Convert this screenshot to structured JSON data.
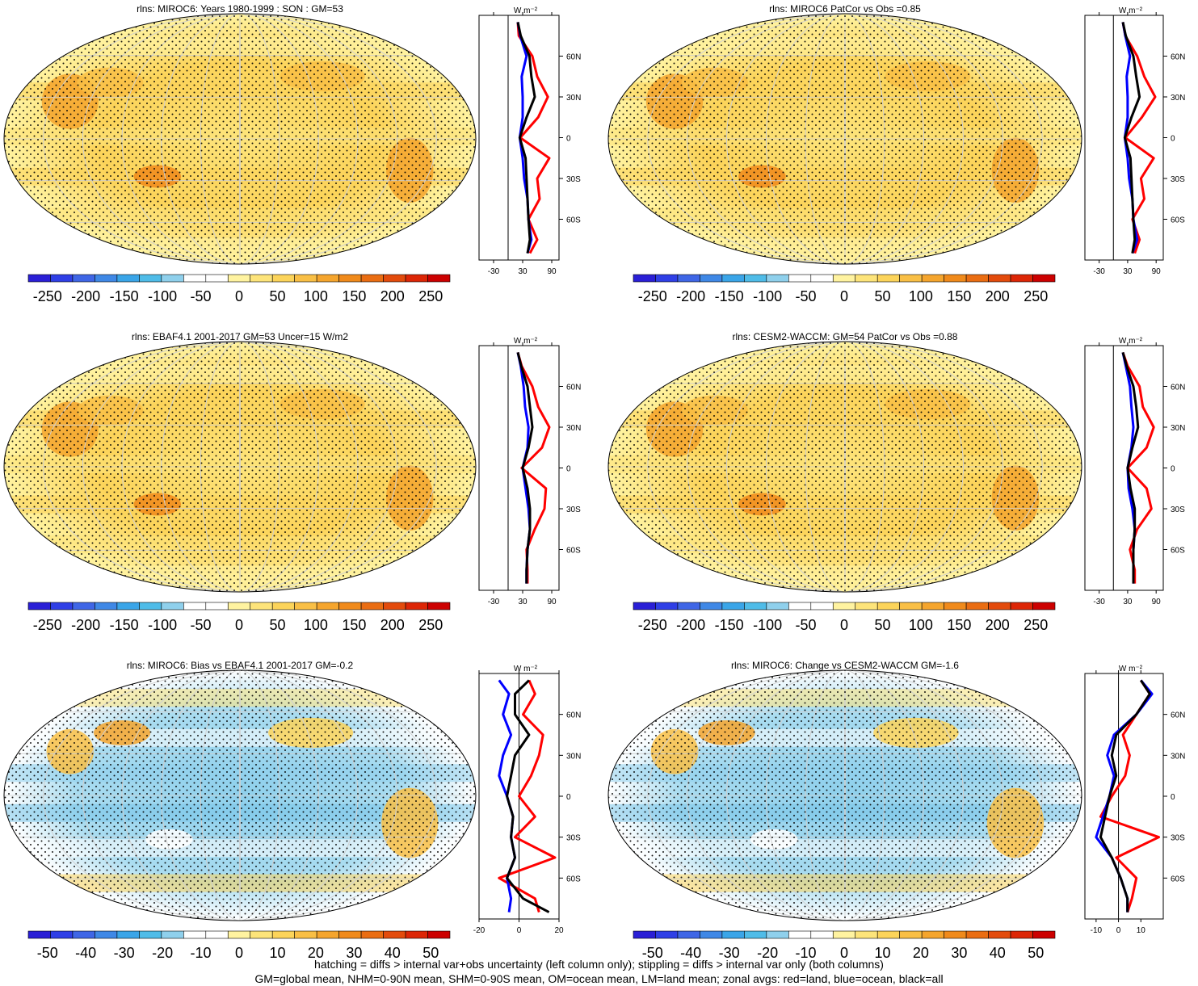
{
  "chart_data": [
    {
      "type": "heatmap",
      "title": "rlns: MIROC6: Years 1980-1999 : SON : GM=53",
      "colorbar": {
        "ticks": [
          "-250",
          "-200",
          "-150",
          "-100",
          "-50",
          "0",
          "50",
          "100",
          "150",
          "200",
          "250"
        ],
        "range": [
          -275,
          275
        ]
      },
      "zonal_panel": {
        "units": "W m⁻²",
        "x_ticks": [
          "-30",
          "30",
          "90"
        ],
        "x_range": [
          -60,
          105
        ],
        "y_ticks": [
          "60N",
          "30N",
          "0",
          "30S",
          "60S"
        ],
        "y_range": [
          -90,
          90
        ],
        "series": [
          {
            "color": "#ff0000",
            "lat": [
              85,
              75,
              60,
              45,
              30,
              15,
              0,
              -15,
              -30,
              -45,
              -60,
              -75,
              -85
            ],
            "values": [
              20,
              22,
              50,
              60,
              82,
              62,
              25,
              85,
              60,
              65,
              42,
              60,
              45
            ]
          },
          {
            "color": "#0000ff",
            "lat": [
              85,
              75,
              60,
              45,
              30,
              15,
              0,
              -15,
              -30,
              -45,
              -60,
              -75,
              -85
            ],
            "values": [
              20,
              25,
              38,
              28,
              30,
              30,
              24,
              30,
              33,
              40,
              42,
              48,
              40
            ]
          },
          {
            "color": "#000000",
            "lat": [
              85,
              75,
              60,
              45,
              30,
              15,
              0,
              -15,
              -30,
              -45,
              -60,
              -75,
              -85
            ],
            "values": [
              20,
              26,
              44,
              48,
              55,
              38,
              24,
              36,
              38,
              40,
              42,
              45,
              40
            ]
          }
        ]
      }
    },
    {
      "type": "heatmap",
      "title": "rlns: MIROC6 PatCor vs Obs =0.85",
      "colorbar": {
        "ticks": [
          "-250",
          "-200",
          "-150",
          "-100",
          "-50",
          "0",
          "50",
          "100",
          "150",
          "200",
          "250"
        ],
        "range": [
          -275,
          275
        ]
      },
      "zonal_panel": {
        "units": "W m⁻²",
        "x_ticks": [
          "-30",
          "30",
          "90"
        ],
        "x_range": [
          -60,
          105
        ],
        "y_ticks": [
          "60N",
          "30N",
          "0",
          "30S",
          "60S"
        ],
        "y_range": [
          -90,
          90
        ],
        "series": [
          {
            "color": "#ff0000",
            "lat": [
              85,
              75,
              60,
              45,
              30,
              15,
              0,
              -15,
              -30,
              -45,
              -60,
              -75,
              -85
            ],
            "values": [
              20,
              25,
              50,
              65,
              88,
              60,
              25,
              85,
              58,
              65,
              40,
              55,
              45
            ]
          },
          {
            "color": "#0000ff",
            "lat": [
              85,
              75,
              60,
              45,
              30,
              15,
              0,
              -15,
              -30,
              -45,
              -60,
              -75,
              -85
            ],
            "values": [
              20,
              25,
              35,
              28,
              30,
              30,
              24,
              30,
              33,
              40,
              42,
              50,
              40
            ]
          },
          {
            "color": "#000000",
            "lat": [
              85,
              75,
              60,
              45,
              30,
              15,
              0,
              -15,
              -30,
              -45,
              -60,
              -75,
              -85
            ],
            "values": [
              20,
              26,
              42,
              48,
              55,
              38,
              24,
              36,
              38,
              40,
              42,
              45,
              40
            ]
          }
        ]
      }
    },
    {
      "type": "heatmap",
      "title": "rlns: EBAF4.1 2001-2017 GM=53 Uncer=15 W/m2",
      "colorbar": {
        "ticks": [
          "-250",
          "-200",
          "-150",
          "-100",
          "-50",
          "0",
          "50",
          "100",
          "150",
          "200",
          "250"
        ],
        "range": [
          -275,
          275
        ]
      },
      "zonal_panel": {
        "units": "W m⁻²",
        "x_ticks": [
          "-30",
          "30",
          "90"
        ],
        "x_range": [
          -60,
          105
        ],
        "y_ticks": [
          "60N",
          "30N",
          "0",
          "30S",
          "60S"
        ],
        "y_range": [
          -90,
          90
        ],
        "series": [
          {
            "color": "#ff0000",
            "lat": [
              85,
              75,
              60,
              45,
              30,
              15,
              0,
              -15,
              -30,
              -45,
              -60,
              -75,
              -85
            ],
            "values": [
              20,
              28,
              50,
              62,
              85,
              70,
              28,
              78,
              75,
              55,
              38,
              40,
              40
            ]
          },
          {
            "color": "#0000ff",
            "lat": [
              85,
              75,
              60,
              45,
              30,
              15,
              0,
              -15,
              -30,
              -45,
              -60,
              -75,
              -85
            ],
            "values": [
              20,
              26,
              32,
              35,
              42,
              40,
              30,
              36,
              42,
              45,
              40,
              38,
              38
            ]
          },
          {
            "color": "#000000",
            "lat": [
              85,
              75,
              60,
              45,
              30,
              15,
              0,
              -15,
              -30,
              -45,
              -60,
              -75,
              -85
            ],
            "values": [
              20,
              27,
              40,
              45,
              50,
              42,
              30,
              40,
              45,
              45,
              40,
              38,
              38
            ]
          }
        ]
      }
    },
    {
      "type": "heatmap",
      "title": "rlns: CESM2-WACCM: GM=54 PatCor vs Obs =0.88",
      "colorbar": {
        "ticks": [
          "-250",
          "-200",
          "-150",
          "-100",
          "-50",
          "0",
          "50",
          "100",
          "150",
          "200",
          "250"
        ],
        "range": [
          -275,
          275
        ]
      },
      "zonal_panel": {
        "units": "W m⁻²",
        "x_ticks": [
          "-30",
          "30",
          "90"
        ],
        "x_range": [
          -60,
          105
        ],
        "y_ticks": [
          "60N",
          "30N",
          "0",
          "30S",
          "60S"
        ],
        "y_range": [
          -90,
          90
        ],
        "series": [
          {
            "color": "#ff0000",
            "lat": [
              85,
              75,
              60,
              45,
              30,
              15,
              0,
              -15,
              -30,
              -45,
              -60,
              -75,
              -85
            ],
            "values": [
              20,
              30,
              55,
              62,
              85,
              70,
              30,
              70,
              80,
              50,
              35,
              45,
              45
            ]
          },
          {
            "color": "#0000ff",
            "lat": [
              85,
              75,
              60,
              45,
              30,
              15,
              0,
              -15,
              -30,
              -45,
              -60,
              -75,
              -85
            ],
            "values": [
              20,
              26,
              35,
              38,
              42,
              38,
              30,
              32,
              40,
              45,
              42,
              42,
              42
            ]
          },
          {
            "color": "#000000",
            "lat": [
              85,
              75,
              60,
              45,
              30,
              15,
              0,
              -15,
              -30,
              -45,
              -60,
              -75,
              -85
            ],
            "values": [
              20,
              28,
              42,
              48,
              52,
              40,
              30,
              36,
              45,
              45,
              42,
              42,
              42
            ]
          }
        ]
      }
    },
    {
      "type": "heatmap",
      "title": "rlns: MIROC6: Bias vs EBAF4.1 2001-2017  GM=-0.2",
      "colorbar": {
        "ticks": [
          "-50",
          "-40",
          "-30",
          "-20",
          "-10",
          "0",
          "10",
          "20",
          "30",
          "40",
          "50"
        ],
        "range": [
          -55,
          55
        ]
      },
      "zonal_panel": {
        "units": "W m⁻²",
        "x_ticks": [
          "-20",
          "0",
          "20"
        ],
        "x_range": [
          -20,
          20
        ],
        "y_ticks": [
          "60N",
          "30N",
          "0",
          "30S",
          "60S"
        ],
        "y_range": [
          -90,
          90
        ],
        "series": [
          {
            "color": "#ff0000",
            "lat": [
              85,
              75,
              60,
              45,
              30,
              15,
              0,
              -15,
              -30,
              -45,
              -60,
              -75,
              -85
            ],
            "values": [
              5,
              8,
              2,
              12,
              10,
              6,
              0,
              8,
              -2,
              18,
              -10,
              8,
              10
            ]
          },
          {
            "color": "#0000ff",
            "lat": [
              85,
              75,
              60,
              45,
              30,
              15,
              0,
              -15,
              -30,
              -45,
              -60,
              -75,
              -85
            ],
            "values": [
              -10,
              -5,
              -8,
              -4,
              -8,
              -10,
              -6,
              -3,
              -4,
              -2,
              -6,
              -4,
              -5
            ]
          },
          {
            "color": "#000000",
            "lat": [
              85,
              75,
              60,
              45,
              30,
              15,
              0,
              -15,
              -30,
              -45,
              -60,
              -75,
              -85
            ],
            "values": [
              5,
              -2,
              -2,
              5,
              -2,
              -4,
              -6,
              -3,
              -4,
              -2,
              -6,
              2,
              15
            ]
          }
        ]
      }
    },
    {
      "type": "heatmap",
      "title": "rlns: MIROC6: Change vs CESM2-WACCM GM=-1.6",
      "colorbar": {
        "ticks": [
          "-50",
          "-40",
          "-30",
          "-20",
          "-10",
          "0",
          "10",
          "20",
          "30",
          "40",
          "50"
        ],
        "range": [
          -55,
          55
        ]
      },
      "zonal_panel": {
        "units": "W m⁻²",
        "x_ticks": [
          "-10",
          "0",
          "10"
        ],
        "x_range": [
          -15,
          20
        ],
        "y_ticks": [
          "60N",
          "30N",
          "0",
          "30S",
          "60S"
        ],
        "y_range": [
          -90,
          90
        ],
        "series": [
          {
            "color": "#ff0000",
            "lat": [
              85,
              75,
              60,
              45,
              30,
              15,
              0,
              -15,
              -30,
              -45,
              -60,
              -75,
              -85
            ],
            "values": [
              10,
              14,
              8,
              2,
              5,
              3,
              -3,
              -8,
              18,
              -1,
              8,
              6,
              4
            ]
          },
          {
            "color": "#0000ff",
            "lat": [
              85,
              75,
              60,
              45,
              30,
              15,
              0,
              -15,
              -30,
              -45,
              -60,
              -75,
              -85
            ],
            "values": [
              10,
              15,
              8,
              -2,
              -5,
              -2,
              -4,
              -7,
              -10,
              -3,
              1,
              4,
              4
            ]
          },
          {
            "color": "#000000",
            "lat": [
              85,
              75,
              60,
              45,
              30,
              15,
              0,
              -15,
              -30,
              -45,
              -60,
              -75,
              -85
            ],
            "values": [
              10,
              14,
              8,
              -1,
              -3,
              -1,
              -4,
              -6,
              -8,
              -3,
              1,
              4,
              4
            ]
          }
        ]
      }
    }
  ],
  "colors": {
    "scale": [
      "#2a1fd6",
      "#2f3fe6",
      "#3f66e6",
      "#3f88e6",
      "#3aa5e8",
      "#4fbce8",
      "#8fd0ec",
      "#ffffff",
      "#ffffff",
      "#fff3a0",
      "#fde47a",
      "#fcd45a",
      "#f9bf45",
      "#f5a52d",
      "#f08a1b",
      "#ea6d12",
      "#e34b0c",
      "#dd2606",
      "#cc0000"
    ]
  },
  "footer": {
    "line1": "hatching = diffs > internal var+obs uncertainty (left column only); stippling = diffs > internal var only (both columns)",
    "line2": "GM=global mean, NHM=0-90N mean, SHM=0-90S mean, OM=ocean mean, LM=land mean; zonal avgs: red=land, blue=ocean, black=all"
  }
}
